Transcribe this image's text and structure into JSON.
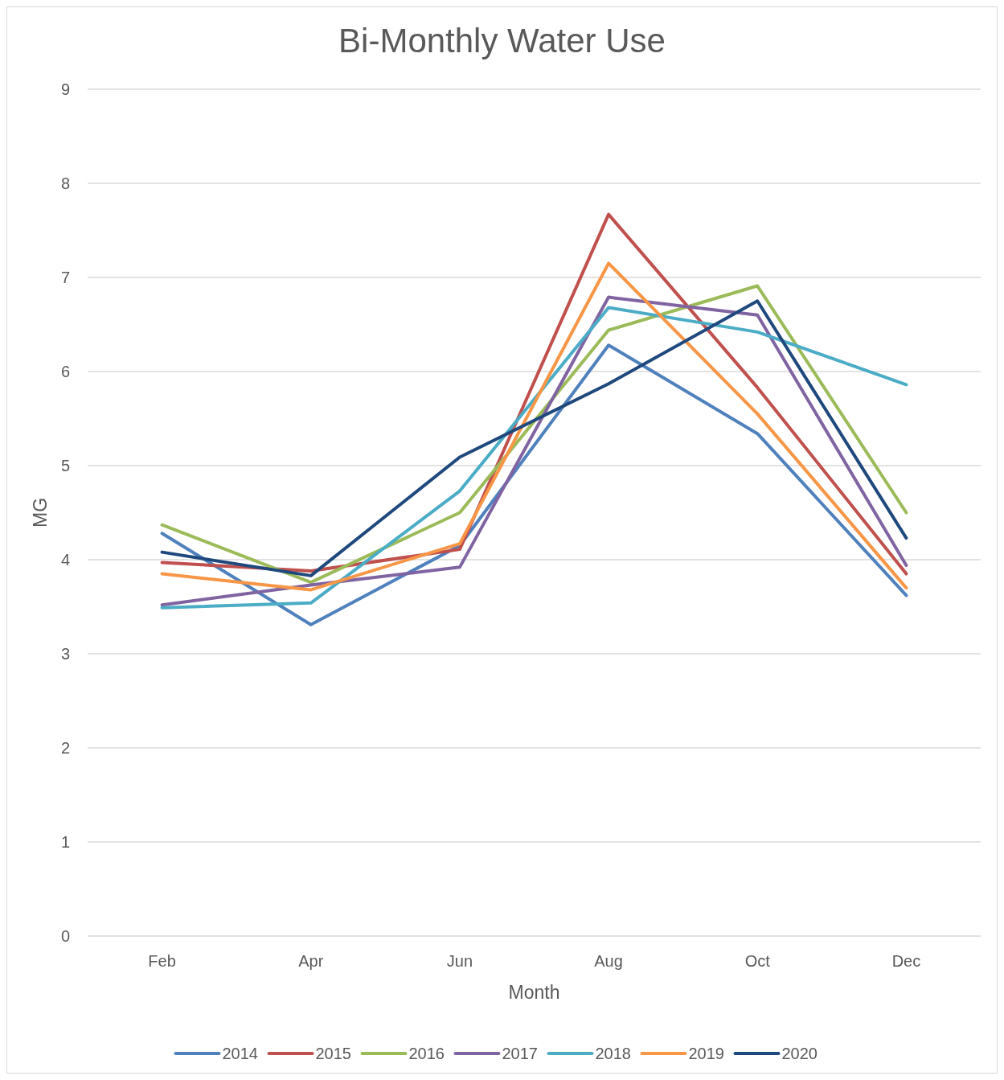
{
  "chart_data": {
    "type": "line",
    "title": "Bi-Monthly Water Use",
    "xlabel": "Month",
    "ylabel": "MG",
    "categories": [
      "Feb",
      "Apr",
      "Jun",
      "Aug",
      "Oct",
      "Dec"
    ],
    "ylim": [
      0,
      9
    ],
    "yticks": [
      0,
      1,
      2,
      3,
      4,
      5,
      6,
      7,
      8,
      9
    ],
    "grid": "y",
    "legend": "bottom",
    "marker": "none",
    "line_style": "solid",
    "series": [
      {
        "name": "2014",
        "color": "#4f81bd",
        "values": [
          4.28,
          3.31,
          4.15,
          6.28,
          5.34,
          3.62
        ]
      },
      {
        "name": "2015",
        "color": "#c0504d",
        "values": [
          3.97,
          3.88,
          4.11,
          7.67,
          5.83,
          3.85
        ]
      },
      {
        "name": "2016",
        "color": "#9bbb59",
        "values": [
          4.37,
          3.76,
          4.5,
          6.44,
          6.91,
          4.5
        ]
      },
      {
        "name": "2017",
        "color": "#8064a2",
        "values": [
          3.52,
          3.73,
          3.92,
          6.79,
          6.6,
          3.94
        ]
      },
      {
        "name": "2018",
        "color": "#4bacc6",
        "values": [
          3.49,
          3.54,
          4.73,
          6.68,
          6.42,
          5.86
        ]
      },
      {
        "name": "2019",
        "color": "#f79646",
        "values": [
          3.85,
          3.68,
          4.17,
          7.15,
          5.55,
          3.7
        ]
      },
      {
        "name": "2020",
        "color": "#1f497d",
        "values": [
          4.08,
          3.83,
          5.09,
          5.87,
          6.75,
          4.23
        ]
      }
    ]
  }
}
